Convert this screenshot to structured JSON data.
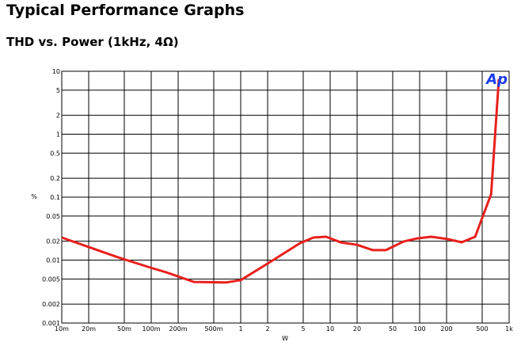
{
  "chart_data": {
    "type": "line",
    "title": "Typical Performance Graphs",
    "subtitle": "THD vs. Power (1kHz, 4Ω)",
    "x_label": "W",
    "y_label": "%",
    "logo": "Ap",
    "x_log": true,
    "y_log": true,
    "grid": true,
    "xlim": [
      0.01,
      1000
    ],
    "ylim": [
      0.001,
      10
    ],
    "xticks": [
      {
        "value": 0.01,
        "label": "10m"
      },
      {
        "value": 0.02,
        "label": "20m"
      },
      {
        "value": 0.05,
        "label": "50m"
      },
      {
        "value": 0.1,
        "label": "100m"
      },
      {
        "value": 0.2,
        "label": "200m"
      },
      {
        "value": 0.5,
        "label": "500m"
      },
      1,
      2,
      5,
      10,
      20,
      50,
      100,
      200,
      500,
      {
        "value": 1000,
        "label": "1k"
      }
    ],
    "yticks": [
      0.001,
      0.002,
      0.005,
      0.01,
      0.02,
      0.05,
      0.1,
      0.2,
      0.5,
      1,
      2,
      5,
      10
    ],
    "x": [
      0.01,
      0.043,
      0.098,
      0.147,
      0.3,
      0.68,
      1,
      2,
      4.6,
      6.5,
      9,
      13.3,
      20,
      30,
      42,
      66,
      94,
      135,
      203,
      295,
      417,
      630,
      767
    ],
    "series": [
      {
        "name": "THD",
        "color": "#e8201c",
        "values": [
          0.0228,
          0.011,
          0.0076,
          0.0064,
          0.0045,
          0.0044,
          0.0048,
          0.0088,
          0.0186,
          0.0228,
          0.0235,
          0.019,
          0.0175,
          0.0144,
          0.0144,
          0.0197,
          0.0221,
          0.0235,
          0.0216,
          0.0192,
          0.0235,
          0.112,
          7.5
        ]
      }
    ]
  }
}
